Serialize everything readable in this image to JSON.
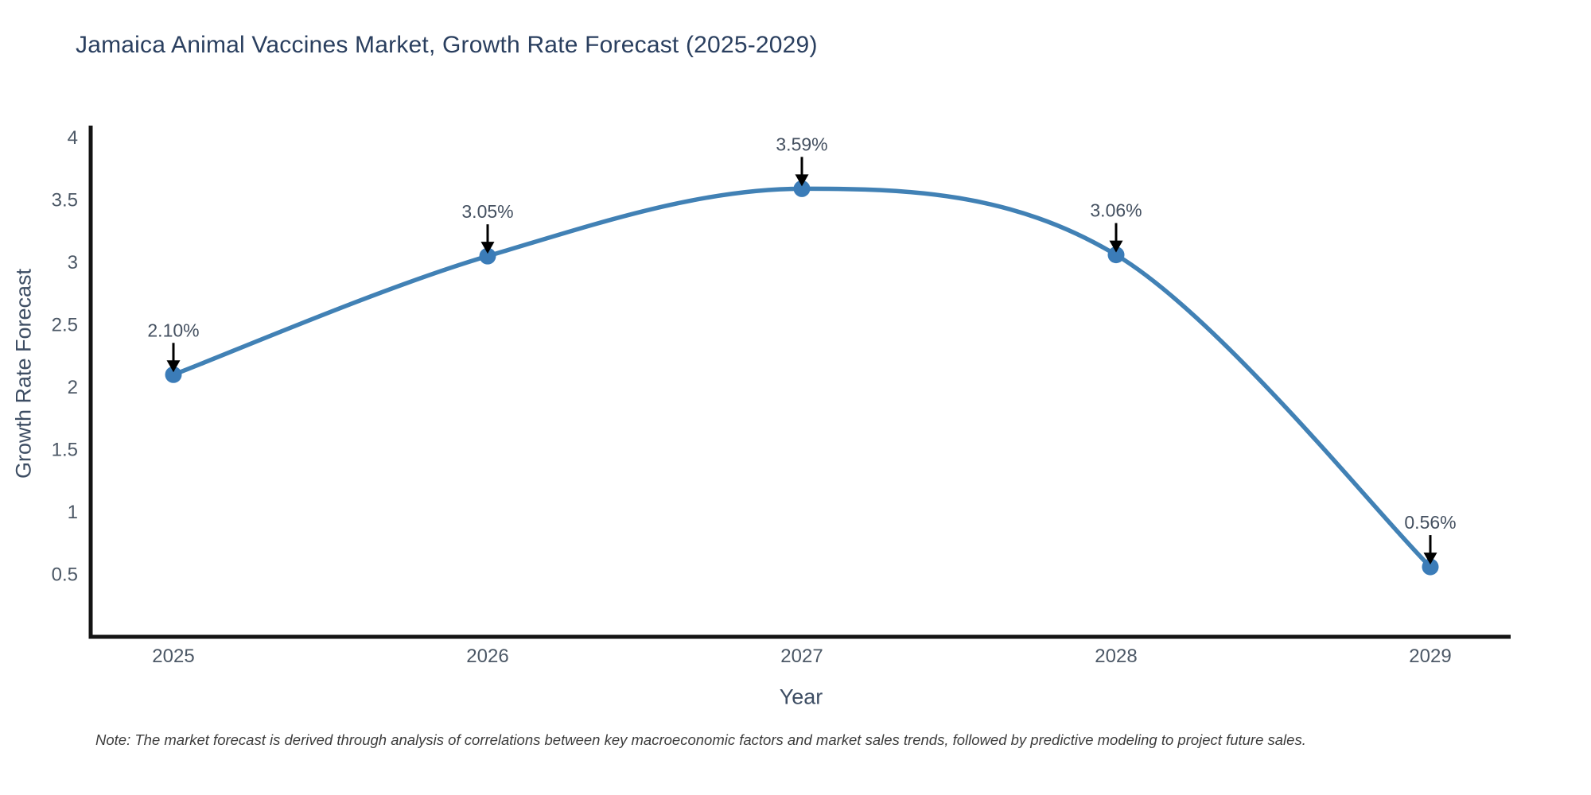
{
  "title": "Jamaica Animal Vaccines Market, Growth Rate Forecast (2025-2029)",
  "note": "Note: The market forecast is derived through analysis of correlations between key macroeconomic factors and market sales trends, followed by predictive modeling to project future sales.",
  "chart_data": {
    "type": "line",
    "title": "Jamaica Animal Vaccines Market, Growth Rate Forecast (2025-2029)",
    "x": [
      2025,
      2026,
      2027,
      2028,
      2029
    ],
    "values": [
      2.1,
      3.05,
      3.59,
      3.06,
      0.56
    ],
    "point_labels": [
      "2.10%",
      "3.05%",
      "3.59%",
      "3.06%",
      "0.56%"
    ],
    "xlabel": "Year",
    "ylabel": "Growth Rate Forecast",
    "ylim": [
      0,
      4.1
    ],
    "yticks": [
      0.5,
      1,
      1.5,
      2,
      2.5,
      3,
      3.5,
      4
    ],
    "line_shape": "spline",
    "grid": false,
    "legend_position": "none",
    "colors": {
      "line": "#4181b5",
      "marker": "#3b7cb8",
      "axis": "#141414",
      "arrow": "#000000",
      "tick_text": "#4c5866",
      "title_text": "#2a3f5f",
      "note_text": "#3c3c3c"
    }
  }
}
